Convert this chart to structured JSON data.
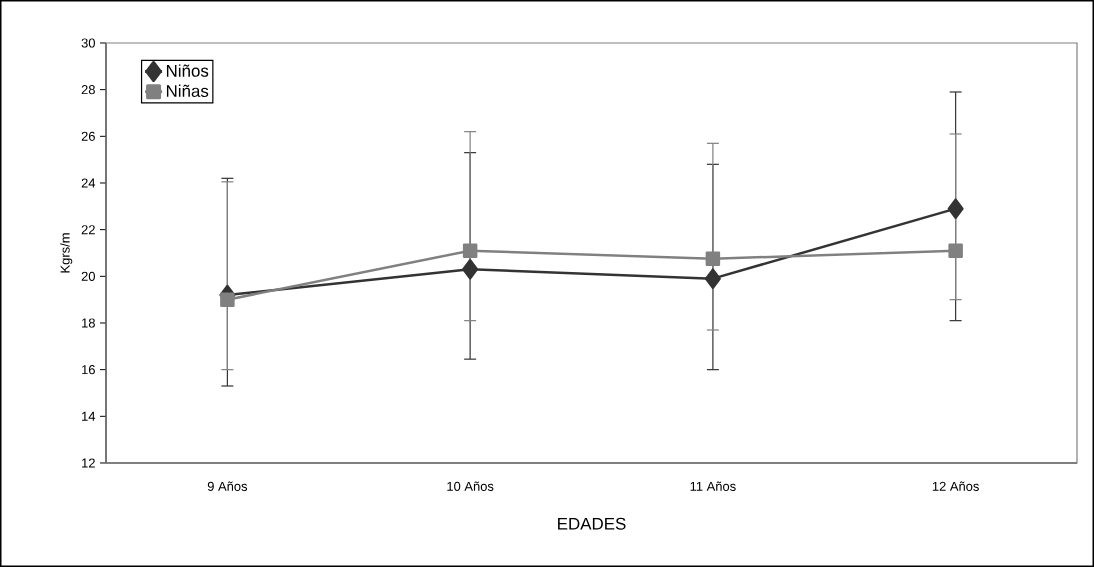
{
  "chart_data": {
    "type": "line",
    "xlabel": "EDADES",
    "ylabel": "Kgrs/m",
    "categories": [
      "9 Años",
      "10 Años",
      "11 Años",
      "12 Años"
    ],
    "series": [
      {
        "name": "Niños",
        "color": "#333333",
        "marker": "diamond",
        "values": [
          19.2,
          20.3,
          19.9,
          22.9
        ],
        "errors": [
          [
            15.3,
            24.2
          ],
          [
            16.45,
            25.3
          ],
          [
            16.0,
            24.8
          ],
          [
            18.1,
            27.9
          ]
        ]
      },
      {
        "name": "Niñas",
        "color": "#808080",
        "marker": "square",
        "values": [
          19.0,
          21.1,
          20.75,
          21.1
        ],
        "errors": [
          [
            16.0,
            24.05
          ],
          [
            18.1,
            26.2
          ],
          [
            17.7,
            25.7
          ],
          [
            19.0,
            26.1
          ]
        ]
      }
    ],
    "ylim": [
      12,
      30
    ],
    "yticks": [
      12,
      14,
      16,
      18,
      20,
      22,
      24,
      26,
      28,
      30
    ],
    "legend": "top left"
  }
}
